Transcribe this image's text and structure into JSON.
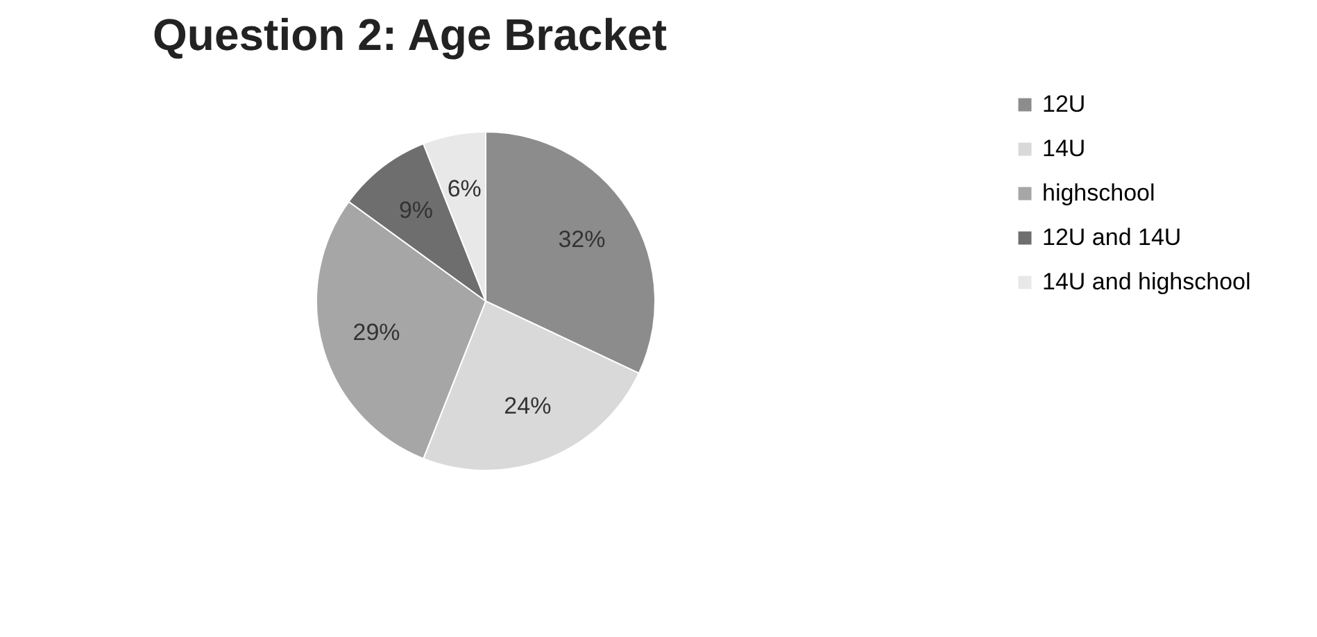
{
  "chart_data": {
    "type": "pie",
    "title": "Question 2: Age Bracket",
    "categories": [
      "12U",
      "14U",
      "highschool",
      "12U and 14U",
      "14U and highschool"
    ],
    "values": [
      32,
      24,
      29,
      9,
      6
    ],
    "value_labels": [
      "32%",
      "24%",
      "29%",
      "9%",
      "6%"
    ],
    "colors": [
      "#8c8c8c",
      "#d9d9d9",
      "#a6a6a6",
      "#6e6e6e",
      "#e8e8e8"
    ],
    "legend": "right"
  }
}
